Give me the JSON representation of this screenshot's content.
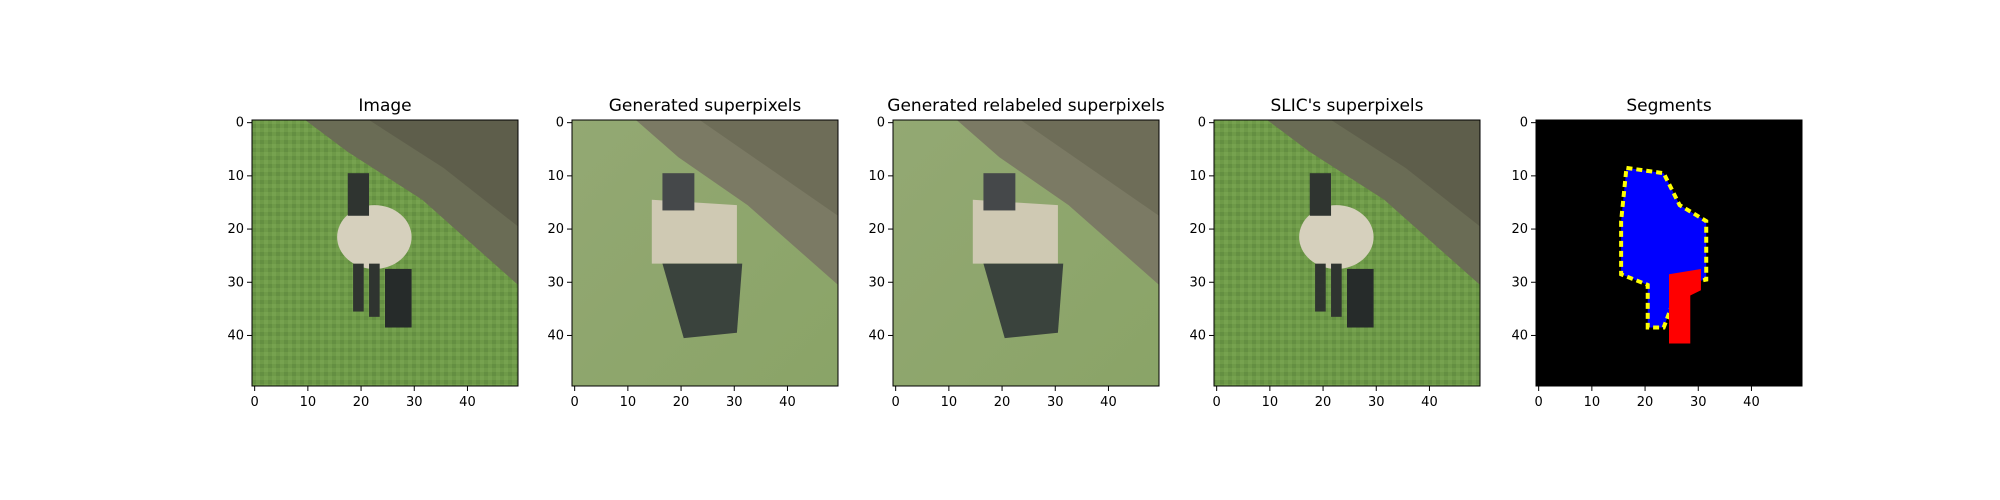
{
  "figure": {
    "panels": [
      {
        "title": "Image",
        "kind": "photo"
      },
      {
        "title": "Generated superpixels",
        "kind": "superpixels"
      },
      {
        "title": "Generated relabeled superpixels",
        "kind": "superpixels"
      },
      {
        "title": "SLIC's superpixels",
        "kind": "photo"
      },
      {
        "title": "Segments",
        "kind": "segments"
      }
    ],
    "axis": {
      "x_ticks": [
        "0",
        "10",
        "20",
        "30",
        "40"
      ],
      "y_ticks": [
        "0",
        "10",
        "20",
        "30",
        "40"
      ],
      "x_range": [
        0,
        50
      ],
      "y_range": [
        0,
        50
      ],
      "y_inverted": true
    },
    "colors": {
      "grass": "#6e9a4a",
      "hill_dark": "#6b6f5c",
      "sheep_body": "#d6d0bd",
      "sheep_dark": "#2f3430",
      "segment_bg": "#000000",
      "segment_blue": "#0000ff",
      "segment_red": "#ff0000",
      "segment_yellow": "#ffff00"
    }
  }
}
